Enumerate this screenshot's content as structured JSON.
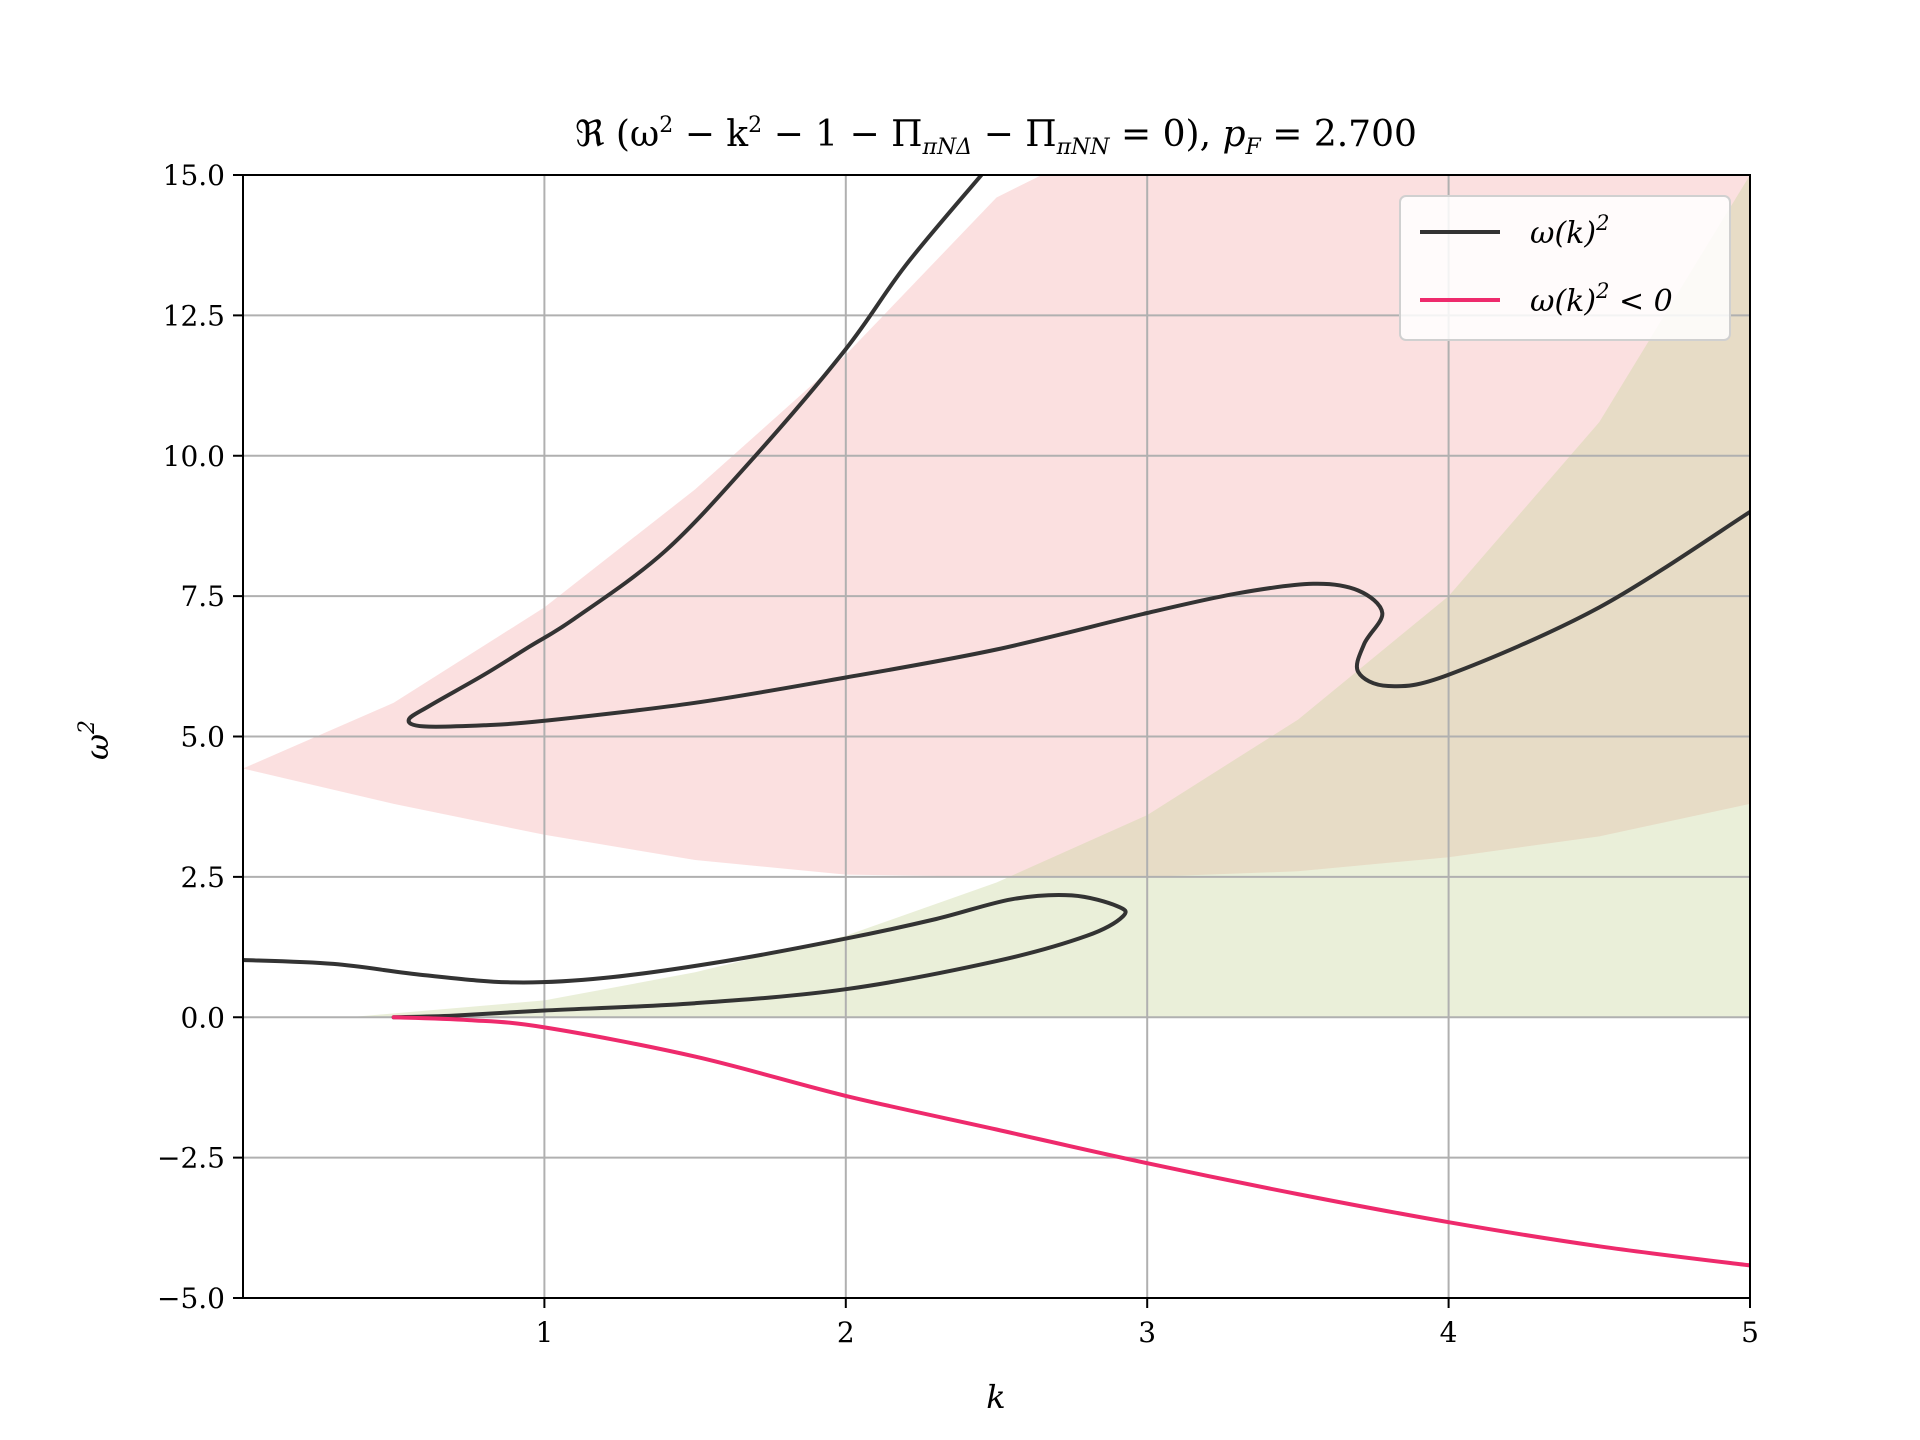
{
  "chart_data": {
    "type": "line",
    "title": "ℜ (ω² − k² − 1 − Π_{πNΔ} − Π_{πNN} = 0), p_F = 2.700",
    "xlabel": "k",
    "ylabel": "ω²",
    "xlim": [
      0,
      5
    ],
    "ylim": [
      -5,
      15
    ],
    "xticks": [
      "1",
      "2",
      "3",
      "4",
      "5"
    ],
    "yticks": [
      "−5.0",
      "−2.5",
      "0.0",
      "2.5",
      "5.0",
      "7.5",
      "10.0",
      "12.5",
      "15.0"
    ],
    "grid": true,
    "legend_position": "top-right",
    "colors": {
      "omega_sq": "#333333",
      "omega_sq_neg": "#ee2a6c",
      "band_delta": "#f5b5b5",
      "band_nn": "#c8d59a",
      "grid": "#b0b0b0"
    },
    "legend": [
      {
        "label": "ω(k)²",
        "color": "#333333"
      },
      {
        "label": "ω(k)² < 0",
        "color": "#ee2a6c"
      }
    ],
    "bands": [
      {
        "color": "#f5b5b5",
        "upper": [
          [
            0.0,
            4.43
          ],
          [
            0.5,
            5.6
          ],
          [
            1.0,
            7.3
          ],
          [
            1.5,
            9.4
          ],
          [
            2.0,
            11.8
          ],
          [
            2.5,
            14.6
          ],
          [
            2.65,
            15.0
          ]
        ],
        "lower": [
          [
            2.65,
            15.0
          ],
          [
            3.0,
            15.0
          ],
          [
            3.5,
            15.0
          ],
          [
            4.0,
            15.0
          ],
          [
            4.5,
            15.0
          ],
          [
            5.0,
            15.0
          ],
          [
            5.0,
            3.8
          ],
          [
            4.5,
            3.22
          ],
          [
            4.0,
            2.85
          ],
          [
            3.5,
            2.6
          ],
          [
            3.0,
            2.5
          ],
          [
            2.5,
            2.5
          ],
          [
            2.0,
            2.54
          ],
          [
            1.5,
            2.8
          ],
          [
            1.0,
            3.25
          ],
          [
            0.5,
            3.8
          ],
          [
            0.0,
            4.43
          ]
        ]
      },
      {
        "color": "#c8d59a",
        "upper": [
          [
            0.35,
            0.0
          ],
          [
            1.0,
            0.3
          ],
          [
            1.5,
            0.8
          ],
          [
            2.0,
            1.45
          ],
          [
            2.5,
            2.4
          ],
          [
            3.0,
            3.6
          ],
          [
            3.5,
            5.3
          ],
          [
            4.0,
            7.5
          ],
          [
            4.5,
            10.6
          ],
          [
            5.0,
            15.0
          ]
        ],
        "lower": [
          [
            5.0,
            0.0
          ],
          [
            0.35,
            0.0
          ]
        ]
      }
    ],
    "series": [
      {
        "name": "ω(k)²",
        "color": "#333333",
        "points": [
          [
            2.45,
            15.0
          ],
          [
            2.2,
            13.4
          ],
          [
            2.0,
            11.9
          ],
          [
            1.7,
            10.0
          ],
          [
            1.4,
            8.3
          ],
          [
            1.1,
            7.1
          ],
          [
            0.95,
            6.6
          ],
          [
            0.8,
            6.1
          ],
          [
            0.62,
            5.55
          ],
          [
            0.55,
            5.3
          ],
          [
            0.6,
            5.18
          ],
          [
            0.8,
            5.2
          ],
          [
            1.0,
            5.28
          ],
          [
            1.5,
            5.6
          ],
          [
            2.0,
            6.05
          ],
          [
            2.5,
            6.55
          ],
          [
            3.0,
            7.2
          ],
          [
            3.3,
            7.55
          ],
          [
            3.55,
            7.72
          ],
          [
            3.7,
            7.6
          ],
          [
            3.78,
            7.2
          ],
          [
            3.72,
            6.65
          ],
          [
            3.7,
            6.15
          ],
          [
            3.8,
            5.9
          ],
          [
            4.0,
            6.1
          ],
          [
            4.5,
            7.3
          ],
          [
            5.0,
            9.0
          ]
        ]
      },
      {
        "name": "ω(k)²",
        "color": "#333333",
        "points": [
          [
            0.0,
            1.02
          ],
          [
            0.3,
            0.95
          ],
          [
            0.6,
            0.75
          ],
          [
            0.9,
            0.62
          ],
          [
            1.2,
            0.7
          ],
          [
            1.6,
            1.0
          ],
          [
            2.0,
            1.4
          ],
          [
            2.3,
            1.75
          ],
          [
            2.55,
            2.1
          ],
          [
            2.75,
            2.17
          ],
          [
            2.9,
            1.98
          ],
          [
            2.92,
            1.8
          ],
          [
            2.8,
            1.45
          ],
          [
            2.5,
            1.0
          ],
          [
            2.0,
            0.5
          ],
          [
            1.5,
            0.25
          ],
          [
            1.0,
            0.12
          ],
          [
            0.7,
            0.03
          ],
          [
            0.5,
            0.0
          ]
        ]
      },
      {
        "name": "ω(k)² < 0",
        "color": "#ee2a6c",
        "points": [
          [
            0.5,
            0.0
          ],
          [
            0.75,
            -0.05
          ],
          [
            1.0,
            -0.18
          ],
          [
            1.5,
            -0.7
          ],
          [
            2.0,
            -1.4
          ],
          [
            2.5,
            -2.0
          ],
          [
            3.0,
            -2.6
          ],
          [
            3.5,
            -3.15
          ],
          [
            4.0,
            -3.65
          ],
          [
            4.5,
            -4.08
          ],
          [
            5.0,
            -4.42
          ]
        ]
      }
    ]
  }
}
